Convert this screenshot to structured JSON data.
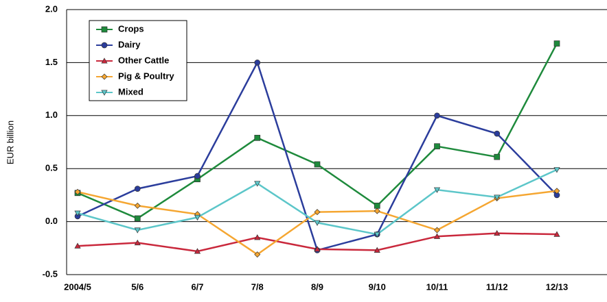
{
  "chart_data": {
    "type": "line",
    "ylabel": "EUR billion",
    "categories": [
      "2004/5",
      "5/6",
      "6/7",
      "7/8",
      "8/9",
      "9/10",
      "10/11",
      "11/12",
      "12/13"
    ],
    "series": [
      {
        "name": "Crops",
        "color": "#1e8a3c",
        "marker": "square",
        "values": [
          0.27,
          0.03,
          0.4,
          0.79,
          0.54,
          0.15,
          0.71,
          0.61,
          1.68
        ]
      },
      {
        "name": "Dairy",
        "color": "#2b3d9c",
        "marker": "circle",
        "values": [
          0.05,
          0.31,
          0.43,
          1.5,
          -0.27,
          -0.12,
          1.0,
          0.83,
          0.25
        ]
      },
      {
        "name": "Other Cattle",
        "color": "#c9283c",
        "marker": "triangle-up",
        "values": [
          -0.23,
          -0.2,
          -0.28,
          -0.15,
          -0.26,
          -0.27,
          -0.14,
          -0.11,
          -0.12
        ]
      },
      {
        "name": "Pig & Poultry",
        "color": "#f5a631",
        "marker": "diamond",
        "values": [
          0.28,
          0.15,
          0.07,
          -0.31,
          0.09,
          0.1,
          -0.08,
          0.22,
          0.29
        ]
      },
      {
        "name": "Mixed",
        "color": "#5cc6c9",
        "marker": "triangle-down",
        "values": [
          0.08,
          -0.08,
          0.04,
          0.36,
          -0.01,
          -0.12,
          0.3,
          0.23,
          0.49
        ]
      }
    ],
    "ylim": [
      -0.5,
      2.0
    ],
    "yticks": [
      -0.5,
      {
        "value": 0,
        "label": "0.0"
      },
      0.5,
      {
        "value": 1,
        "label": "1.0"
      },
      1.5,
      {
        "value": 2,
        "label": "2.0"
      }
    ],
    "grid": true,
    "legend": "upper left"
  }
}
